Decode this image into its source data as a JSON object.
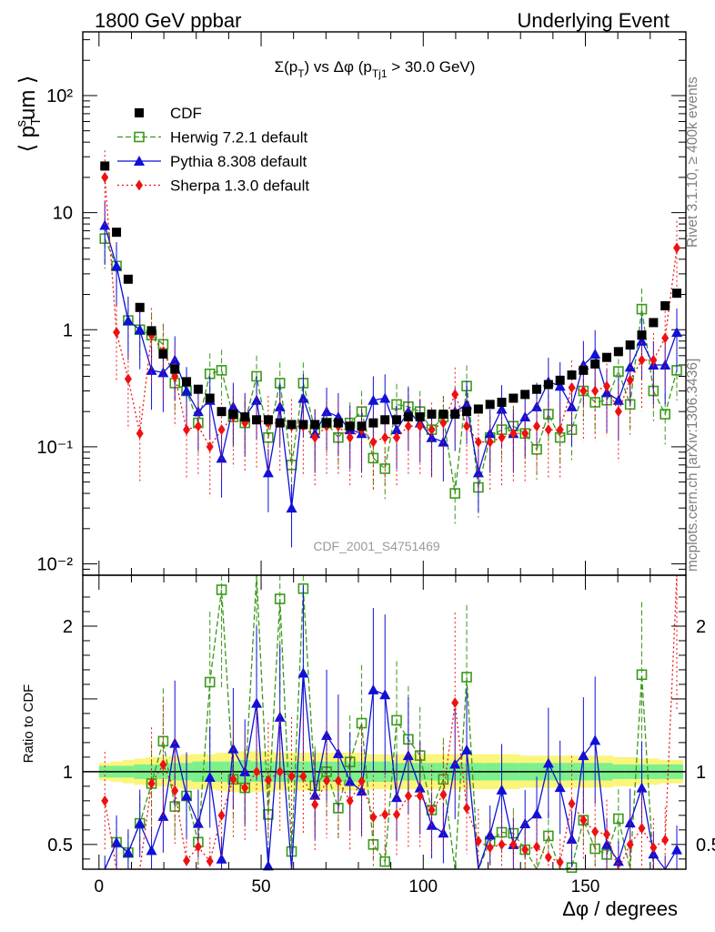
{
  "header": {
    "left": "1800 GeV ppbar",
    "right": "Underlying Event"
  },
  "side_texts": {
    "rivet": "Rivet 3.1.10, ≥ 400k events",
    "mcplots": "mcplots.cern.ch [arXiv:1306.3436]"
  },
  "watermark": "CDF_2001_S4751469",
  "colors": {
    "cdf": "#000000",
    "herwig": "#3a9a1a",
    "pythia": "#1010d8",
    "sherpa": "#ee1111",
    "band_inner": "#7cf08c",
    "band_outer": "#fbf57a"
  },
  "chart_data": [
    {
      "type": "scatter",
      "panel": "main",
      "title": "Σ(p_T) vs Δφ (p_Tj1 > 30.0 GeV)",
      "ylabel": "⟨ p_T^sum ⟩",
      "yscale": "log",
      "xlim": [
        -5,
        181
      ],
      "ylim": [
        0.008,
        350
      ],
      "y_ticks": [
        {
          "value": 0.01,
          "label": "10⁻²"
        },
        {
          "value": 0.1,
          "label": "10⁻¹"
        },
        {
          "value": 1,
          "label": "1"
        },
        {
          "value": 10,
          "label": "10"
        },
        {
          "value": 100,
          "label": "10²"
        }
      ],
      "legend_position": "top-left",
      "x": [
        1.8,
        5.4,
        9.0,
        12.6,
        16.2,
        19.8,
        23.4,
        27.0,
        30.6,
        34.2,
        37.8,
        41.4,
        45.0,
        48.6,
        52.2,
        55.8,
        59.4,
        63.0,
        66.6,
        70.2,
        73.8,
        77.4,
        81.0,
        84.6,
        88.2,
        91.8,
        95.4,
        99.0,
        102.6,
        106.2,
        109.8,
        113.4,
        117.0,
        120.6,
        124.2,
        127.8,
        131.4,
        135.0,
        138.6,
        142.2,
        145.8,
        149.4,
        153.0,
        156.6,
        160.2,
        163.8,
        167.4,
        171.0,
        174.6,
        178.2
      ],
      "series": [
        {
          "name": "CDF",
          "marker": "square",
          "values": [
            25,
            6.8,
            2.7,
            1.55,
            0.98,
            0.62,
            0.46,
            0.36,
            0.31,
            0.26,
            0.2,
            0.19,
            0.18,
            0.17,
            0.17,
            0.16,
            0.155,
            0.155,
            0.155,
            0.16,
            0.16,
            0.15,
            0.15,
            0.16,
            0.17,
            0.17,
            0.18,
            0.18,
            0.19,
            0.19,
            0.19,
            0.2,
            0.21,
            0.23,
            0.24,
            0.26,
            0.28,
            0.31,
            0.34,
            0.37,
            0.41,
            0.45,
            0.51,
            0.58,
            0.65,
            0.74,
            0.9,
            1.15,
            1.6,
            2.05
          ]
        },
        {
          "name": "Herwig 7.2.1 default",
          "marker": "open-square",
          "line": "dashed",
          "values": [
            6.0,
            3.5,
            1.2,
            1.0,
            0.9,
            0.75,
            0.35,
            0.3,
            0.16,
            0.42,
            0.45,
            0.18,
            0.16,
            0.4,
            0.12,
            0.35,
            0.07,
            0.35,
            0.14,
            0.16,
            0.12,
            0.16,
            0.2,
            0.08,
            0.065,
            0.23,
            0.22,
            0.2,
            0.14,
            0.18,
            0.04,
            0.33,
            0.045,
            0.12,
            0.14,
            0.15,
            0.13,
            0.095,
            0.19,
            0.12,
            0.14,
            0.3,
            0.24,
            0.25,
            0.44,
            0.23,
            1.5,
            0.3,
            0.19,
            0.45
          ]
        },
        {
          "name": "Pythia 8.308 default",
          "marker": "triangle",
          "line": "solid",
          "values": [
            7.8,
            3.5,
            1.2,
            1.0,
            0.45,
            0.43,
            0.55,
            0.3,
            0.2,
            0.25,
            0.08,
            0.22,
            0.18,
            0.25,
            0.06,
            0.22,
            0.03,
            0.26,
            0.13,
            0.2,
            0.18,
            0.14,
            0.13,
            0.25,
            0.26,
            0.14,
            0.2,
            0.16,
            0.12,
            0.11,
            0.2,
            0.23,
            0.06,
            0.13,
            0.21,
            0.13,
            0.18,
            0.22,
            0.36,
            0.33,
            0.22,
            0.5,
            0.62,
            0.29,
            0.25,
            0.48,
            0.8,
            0.5,
            0.5,
            0.95
          ]
        },
        {
          "name": "Sherpa 1.3.0 default",
          "marker": "diamond",
          "line": "dotted",
          "values": [
            20,
            0.95,
            0.38,
            0.13,
            0.9,
            0.65,
            0.4,
            0.14,
            0.15,
            0.1,
            0.14,
            0.18,
            0.16,
            0.17,
            0.16,
            0.16,
            0.15,
            0.15,
            0.12,
            0.15,
            0.15,
            0.12,
            0.14,
            0.11,
            0.12,
            0.12,
            0.15,
            0.15,
            0.14,
            0.16,
            0.28,
            0.15,
            0.11,
            0.11,
            0.12,
            0.13,
            0.13,
            0.15,
            0.14,
            0.14,
            0.32,
            0.3,
            0.3,
            0.33,
            0.2,
            0.37,
            0.55,
            0.55,
            0.85,
            5.0
          ]
        }
      ]
    },
    {
      "type": "scatter",
      "panel": "ratio",
      "ylabel": "Ratio to CDF",
      "xlabel": "Δφ / degrees",
      "xlim": [
        -5,
        181
      ],
      "ylim": [
        0.33,
        2.35
      ],
      "x_ticks": [
        0,
        50,
        100,
        150
      ],
      "y_ticks": [
        0.5,
        1,
        2
      ],
      "reference_line": 1,
      "band_inner_halfwidth": [
        0.04,
        0.04,
        0.04,
        0.05,
        0.05,
        0.05,
        0.06,
        0.06,
        0.07,
        0.07,
        0.07,
        0.07,
        0.08,
        0.07,
        0.07,
        0.07,
        0.07,
        0.07,
        0.07,
        0.07,
        0.07,
        0.07,
        0.07,
        0.07,
        0.07,
        0.06,
        0.06,
        0.06,
        0.06,
        0.06,
        0.06,
        0.06,
        0.06,
        0.06,
        0.06,
        0.06,
        0.06,
        0.06,
        0.06,
        0.06,
        0.06,
        0.06,
        0.06,
        0.06,
        0.05,
        0.05,
        0.05,
        0.05,
        0.05,
        0.05
      ],
      "band_outer_halfwidth": [
        0.06,
        0.07,
        0.08,
        0.09,
        0.1,
        0.1,
        0.11,
        0.12,
        0.12,
        0.12,
        0.13,
        0.14,
        0.14,
        0.14,
        0.14,
        0.13,
        0.13,
        0.13,
        0.13,
        0.13,
        0.13,
        0.13,
        0.13,
        0.12,
        0.12,
        0.12,
        0.12,
        0.12,
        0.12,
        0.12,
        0.12,
        0.12,
        0.12,
        0.12,
        0.12,
        0.12,
        0.11,
        0.11,
        0.11,
        0.11,
        0.11,
        0.11,
        0.11,
        0.11,
        0.1,
        0.1,
        0.09,
        0.09,
        0.08,
        0.08
      ]
    }
  ]
}
